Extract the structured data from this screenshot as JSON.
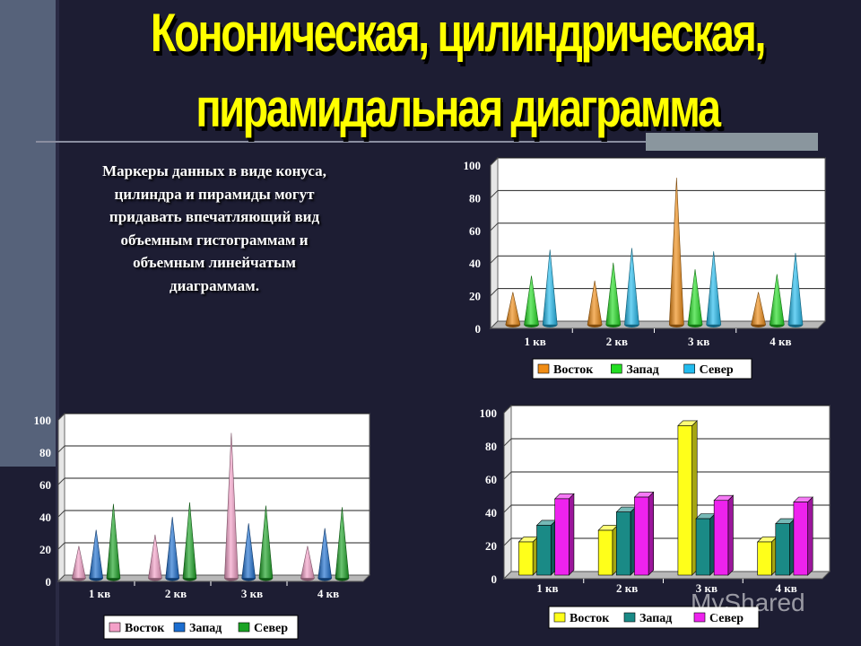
{
  "slide": {
    "title_line1": "Кононическая, цилиндрическая,",
    "title_line2": "пирамидальная диаграмма",
    "description": "Маркеры данных в виде конуса, цилиндра и пирамиды могут придавать впечатляющий вид объемным гистограммам и объемным линейчатым диаграммам.",
    "watermark": "MyShared"
  },
  "chart_data": [
    {
      "type": "bar",
      "marker": "cone",
      "categories": [
        "1 кв",
        "2 кв",
        "3 кв",
        "4 кв"
      ],
      "ylim": [
        0,
        100
      ],
      "yticks": [
        0,
        20,
        40,
        60,
        80,
        100
      ],
      "grid": true,
      "legend_position": "bottom",
      "series": [
        {
          "name": "Восток",
          "color": "#f08c14",
          "values": [
            20,
            27,
            90,
            20
          ]
        },
        {
          "name": "Запад",
          "color": "#22dd22",
          "values": [
            30,
            38,
            34,
            31
          ]
        },
        {
          "name": "Север",
          "color": "#22bbee",
          "values": [
            46,
            47,
            45,
            44
          ]
        }
      ]
    },
    {
      "type": "bar",
      "marker": "cone",
      "categories": [
        "1 кв",
        "2 кв",
        "3 кв",
        "4 кв"
      ],
      "ylim": [
        0,
        100
      ],
      "yticks": [
        0,
        20,
        40,
        60,
        80,
        100
      ],
      "grid": true,
      "legend_position": "bottom",
      "series": [
        {
          "name": "Восток",
          "color": "#f4a0c8",
          "values": [
            20,
            27,
            90,
            20
          ]
        },
        {
          "name": "Запад",
          "color": "#1c6ed0",
          "values": [
            30,
            38,
            34,
            31
          ]
        },
        {
          "name": "Север",
          "color": "#1aa324",
          "values": [
            46,
            47,
            45,
            44
          ]
        }
      ]
    },
    {
      "type": "bar",
      "marker": "column",
      "categories": [
        "1 кв",
        "2 кв",
        "3 кв",
        "4 кв"
      ],
      "ylim": [
        0,
        100
      ],
      "yticks": [
        0,
        20,
        40,
        60,
        80,
        100
      ],
      "grid": true,
      "legend_position": "bottom",
      "series": [
        {
          "name": "Восток",
          "color": "#ffff1a",
          "values": [
            20,
            27,
            90,
            20
          ]
        },
        {
          "name": "Запад",
          "color": "#1a8a86",
          "values": [
            30,
            38,
            34,
            31
          ]
        },
        {
          "name": "Север",
          "color": "#ee22ee",
          "values": [
            46,
            47,
            45,
            44
          ]
        }
      ]
    }
  ]
}
